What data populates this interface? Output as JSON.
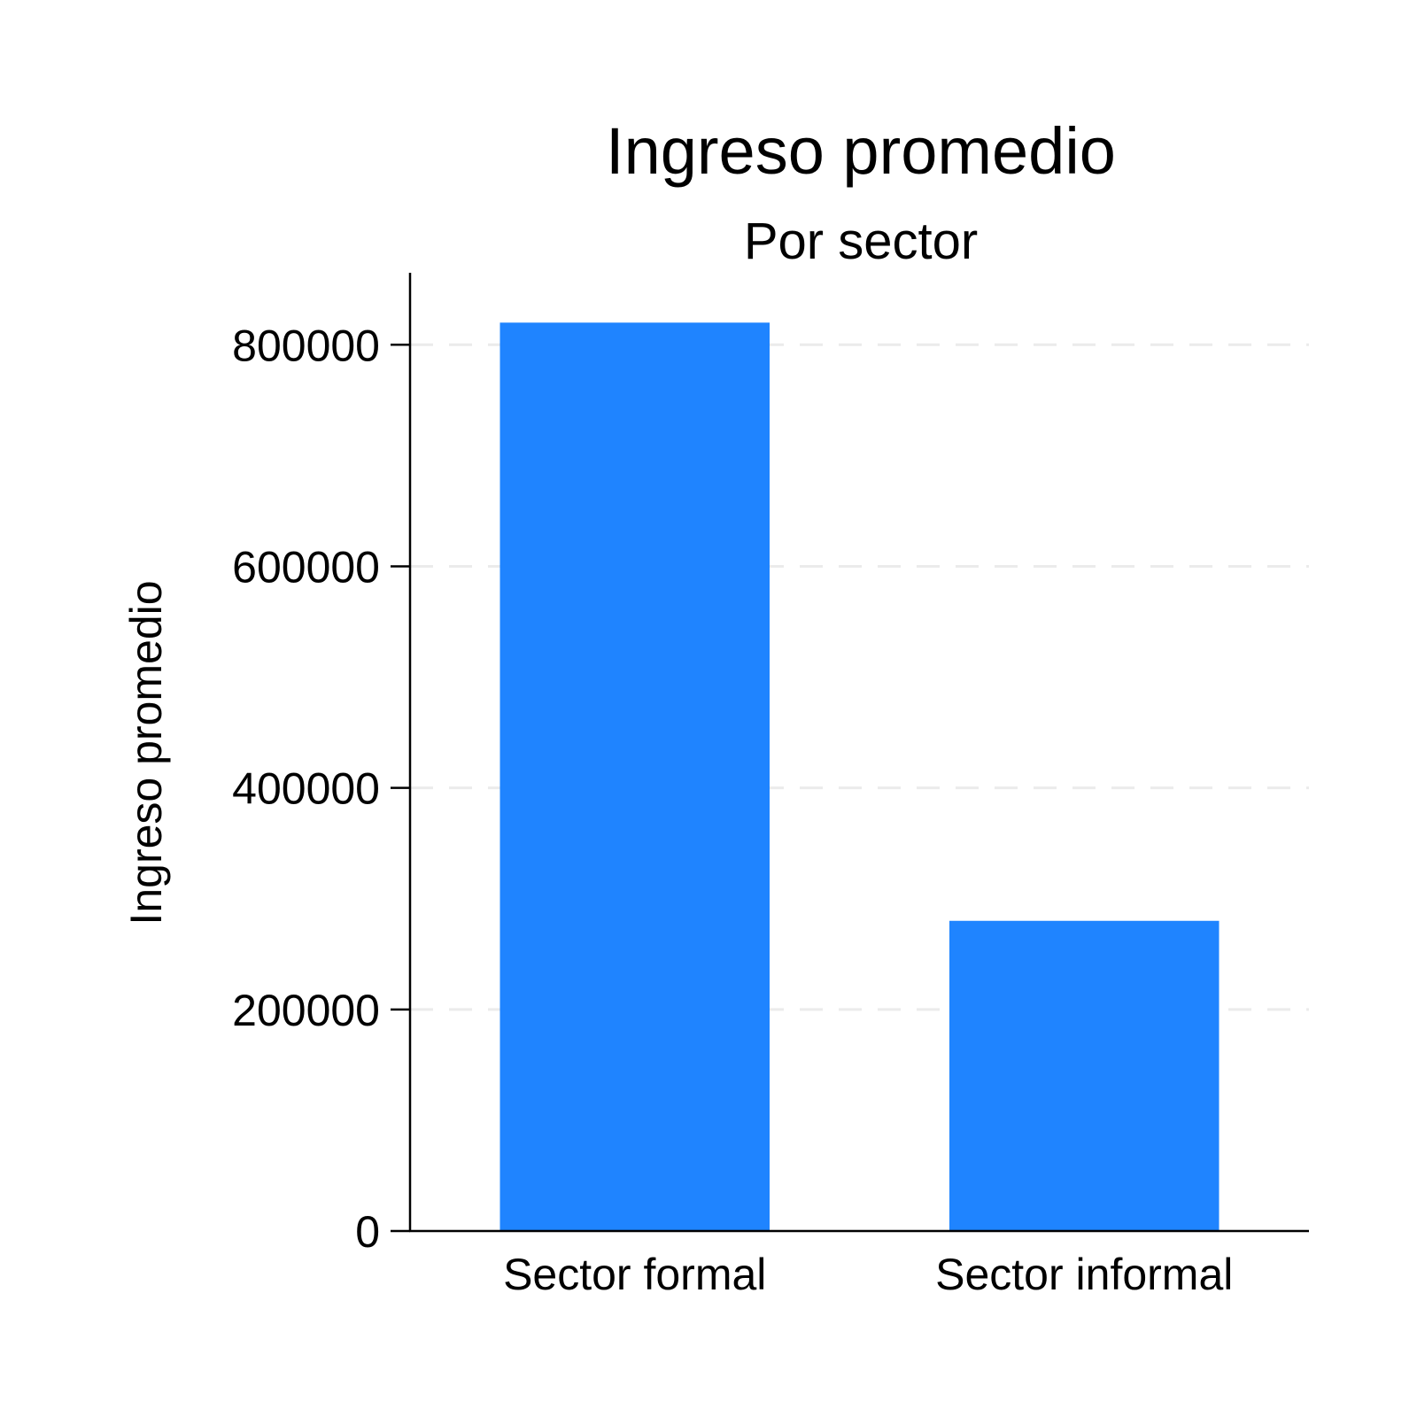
{
  "chart_data": {
    "type": "bar",
    "title": "Ingreso promedio",
    "subtitle": "Por sector",
    "xlabel": "",
    "ylabel": "Ingreso promedio",
    "categories": [
      "Sector formal",
      "Sector informal"
    ],
    "values": [
      820000,
      280000
    ],
    "ylim": [
      0,
      865000
    ],
    "yticks": [
      0,
      200000,
      400000,
      600000,
      800000
    ],
    "ytick_labels": [
      "0",
      "200000",
      "400000",
      "600000",
      "800000"
    ],
    "grid": "horizontal dashed",
    "legend": "none",
    "colors": {
      "bar": "#1f84ff",
      "grid": "#ebebeb",
      "axis": "#000000",
      "text": "#000000"
    }
  }
}
